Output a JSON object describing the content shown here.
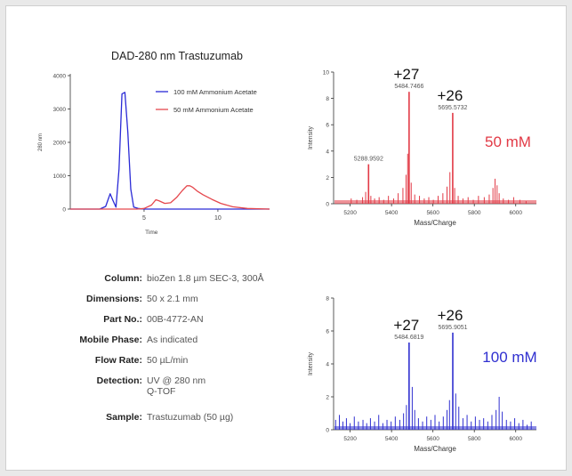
{
  "chart_data": [
    {
      "type": "line",
      "title": "DAD-280 nm Trastuzumab",
      "xlabel": "Time",
      "ylabel": "280 nm",
      "xlim": [
        0,
        13.5
      ],
      "ylim": [
        0,
        4000
      ],
      "xticks": [
        5,
        10
      ],
      "yticks": [
        0,
        1000,
        2000,
        3000,
        4000
      ],
      "legend_position": "top-right",
      "series": [
        {
          "name": "100 mM Ammonium Acetate",
          "color": "#2a2ad6",
          "x": [
            0,
            1,
            2.0,
            2.4,
            2.7,
            2.9,
            3.1,
            3.3,
            3.5,
            3.7,
            3.9,
            4.1,
            4.3,
            4.6,
            5.0,
            7,
            10,
            13.5
          ],
          "y": [
            0,
            0,
            0,
            80,
            460,
            250,
            60,
            1200,
            3450,
            3500,
            2300,
            600,
            60,
            20,
            0,
            0,
            0,
            0
          ]
        },
        {
          "name": "50 mM Ammonium Acetate",
          "color": "#e5474d",
          "x": [
            0,
            4.5,
            5.0,
            5.5,
            5.8,
            6.0,
            6.4,
            6.8,
            7.2,
            7.6,
            7.9,
            8.1,
            8.3,
            8.6,
            9.0,
            9.6,
            10.2,
            11.0,
            12.0,
            13.5
          ],
          "y": [
            0,
            0,
            20,
            120,
            280,
            250,
            170,
            190,
            350,
            560,
            700,
            700,
            650,
            540,
            430,
            290,
            170,
            70,
            20,
            0
          ]
        }
      ]
    },
    {
      "type": "bar",
      "label": "50 mM",
      "color": "#e23a46",
      "xlabel": "Mass/Charge",
      "ylabel": "Intensity",
      "xlim": [
        5120,
        6100
      ],
      "ylim": [
        0,
        10
      ],
      "xticks": [
        5200,
        5400,
        5600,
        5800,
        6000
      ],
      "yticks": [
        0,
        2,
        4,
        6,
        8,
        10
      ],
      "peaks": [
        {
          "x": 5288.9592,
          "y": 3.0,
          "label": "5288.9592"
        },
        {
          "x": 5484.7466,
          "y": 8.5,
          "label": "5484.7466",
          "charge": "+27"
        },
        {
          "x": 5695.5732,
          "y": 6.9,
          "label": "5695.5732",
          "charge": "+26"
        }
      ],
      "minor_peaks": [
        [
          5205,
          0.4
        ],
        [
          5232,
          0.3
        ],
        [
          5260,
          0.5
        ],
        [
          5275,
          0.9
        ],
        [
          5300,
          0.6
        ],
        [
          5318,
          0.4
        ],
        [
          5340,
          0.5
        ],
        [
          5362,
          0.3
        ],
        [
          5385,
          0.6
        ],
        [
          5410,
          0.4
        ],
        [
          5432,
          0.8
        ],
        [
          5455,
          1.2
        ],
        [
          5470,
          2.2
        ],
        [
          5478,
          3.8
        ],
        [
          5495,
          1.6
        ],
        [
          5512,
          0.7
        ],
        [
          5535,
          0.6
        ],
        [
          5558,
          0.4
        ],
        [
          5580,
          0.5
        ],
        [
          5602,
          0.3
        ],
        [
          5625,
          0.6
        ],
        [
          5648,
          0.8
        ],
        [
          5668,
          1.3
        ],
        [
          5682,
          2.4
        ],
        [
          5705,
          1.2
        ],
        [
          5722,
          0.6
        ],
        [
          5745,
          0.4
        ],
        [
          5770,
          0.5
        ],
        [
          5795,
          0.3
        ],
        [
          5820,
          0.6
        ],
        [
          5848,
          0.5
        ],
        [
          5872,
          0.7
        ],
        [
          5890,
          1.2
        ],
        [
          5900,
          1.9
        ],
        [
          5910,
          1.4
        ],
        [
          5920,
          0.8
        ],
        [
          5940,
          0.4
        ],
        [
          5965,
          0.3
        ],
        [
          5990,
          0.5
        ],
        [
          6020,
          0.3
        ],
        [
          6050,
          0.2
        ]
      ]
    },
    {
      "type": "bar",
      "label": "100 mM",
      "color": "#3030d0",
      "xlabel": "Mass/Charge",
      "ylabel": "Intensity",
      "xlim": [
        5120,
        6100
      ],
      "ylim": [
        0,
        8
      ],
      "xticks": [
        5200,
        5400,
        5600,
        5800,
        6000
      ],
      "yticks": [
        0,
        2,
        4,
        6,
        8
      ],
      "peaks": [
        {
          "x": 5484.6819,
          "y": 5.3,
          "label": "5484.6819",
          "charge": "+27"
        },
        {
          "x": 5695.9051,
          "y": 5.9,
          "label": "5695.9051",
          "charge": "+26"
        }
      ],
      "minor_peaks": [
        [
          5130,
          0.6
        ],
        [
          5148,
          0.9
        ],
        [
          5165,
          0.5
        ],
        [
          5182,
          0.7
        ],
        [
          5200,
          0.4
        ],
        [
          5220,
          0.8
        ],
        [
          5240,
          0.5
        ],
        [
          5262,
          0.6
        ],
        [
          5280,
          0.4
        ],
        [
          5298,
          0.7
        ],
        [
          5318,
          0.5
        ],
        [
          5338,
          0.9
        ],
        [
          5358,
          0.4
        ],
        [
          5378,
          0.6
        ],
        [
          5398,
          0.5
        ],
        [
          5418,
          0.8
        ],
        [
          5440,
          0.6
        ],
        [
          5458,
          1.0
        ],
        [
          5472,
          1.5
        ],
        [
          5500,
          2.6
        ],
        [
          5512,
          1.2
        ],
        [
          5530,
          0.7
        ],
        [
          5550,
          0.5
        ],
        [
          5570,
          0.8
        ],
        [
          5590,
          0.6
        ],
        [
          5610,
          0.9
        ],
        [
          5630,
          0.5
        ],
        [
          5650,
          0.8
        ],
        [
          5668,
          1.2
        ],
        [
          5680,
          1.8
        ],
        [
          5710,
          2.2
        ],
        [
          5725,
          1.4
        ],
        [
          5745,
          0.7
        ],
        [
          5765,
          0.9
        ],
        [
          5785,
          0.5
        ],
        [
          5805,
          0.8
        ],
        [
          5825,
          0.6
        ],
        [
          5845,
          0.7
        ],
        [
          5865,
          0.5
        ],
        [
          5885,
          0.9
        ],
        [
          5905,
          1.2
        ],
        [
          5920,
          2.0
        ],
        [
          5935,
          1.1
        ],
        [
          5955,
          0.6
        ],
        [
          5975,
          0.5
        ],
        [
          5995,
          0.7
        ],
        [
          6015,
          0.4
        ],
        [
          6035,
          0.6
        ],
        [
          6055,
          0.3
        ],
        [
          6075,
          0.5
        ]
      ]
    }
  ],
  "info": [
    {
      "label": "Column:",
      "value": "bioZen 1.8 µm SEC-3, 300Å"
    },
    {
      "label": "Dimensions:",
      "value": "50 x 2.1 mm"
    },
    {
      "label": "Part No.:",
      "value": "00B-4772-AN"
    },
    {
      "label": "Mobile Phase:",
      "value": "As indicated"
    },
    {
      "label": "Flow Rate:",
      "value": "50 µL/min"
    },
    {
      "label": "Detection:",
      "value": "UV @ 280 nm\nQ-TOF"
    },
    {
      "label": "Sample:",
      "value": "Trastuzumab (50 µg)"
    }
  ]
}
